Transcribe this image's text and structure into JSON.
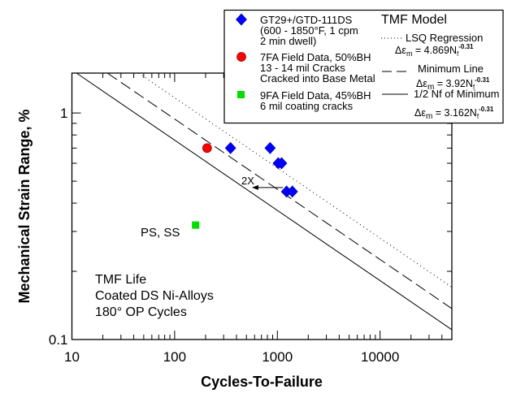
{
  "chart_data": {
    "type": "scatter",
    "title": "",
    "xlabel": "Cycles-To-Failure",
    "ylabel": "Mechanical Strain Range, %",
    "xscale": "log",
    "yscale": "log",
    "xlim": [
      10,
      50000
    ],
    "ylim": [
      0.1,
      1.5
    ],
    "x_tick_labels": [
      "10",
      "100",
      "1000",
      "10000"
    ],
    "x_ticks": [
      10,
      100,
      1000,
      10000
    ],
    "y_tick_labels": [
      "0.1",
      "1"
    ],
    "y_ticks": [
      0.1,
      1
    ],
    "grid": false,
    "legend_placement": "top-right, outside plot area",
    "series": [
      {
        "name": "GT29+/GTD-111DS (600 - 1850°F, 1 cpm 2 min dwell)",
        "marker": "diamond",
        "color": "#0000ff",
        "points": [
          {
            "x": 350,
            "y": 0.7
          },
          {
            "x": 850,
            "y": 0.7
          },
          {
            "x": 1020,
            "y": 0.6
          },
          {
            "x": 1100,
            "y": 0.6
          },
          {
            "x": 1230,
            "y": 0.45
          },
          {
            "x": 1400,
            "y": 0.45
          }
        ]
      },
      {
        "name": "7FA Field Data, 50%BH 13 - 14 mil Cracks Cracked into Base Metal",
        "marker": "circle",
        "color": "#ff0000",
        "points": [
          {
            "x": 207,
            "y": 0.7
          }
        ]
      },
      {
        "name": "9FA Field Data, 45%BH 6 mil coating cracks",
        "marker": "square",
        "color": "#00dd00",
        "points": [
          {
            "x": 160,
            "y": 0.32
          }
        ]
      }
    ],
    "model_lines": [
      {
        "name": "LSQ Regression",
        "style": "dotted",
        "coef": 4.869,
        "exponent": -0.31
      },
      {
        "name": "Minimum Line",
        "style": "dashed",
        "coef": 3.92,
        "exponent": -0.31
      },
      {
        "name": "1/2 Nf of Minimum",
        "style": "solid",
        "coef": 3.162,
        "exponent": -0.31
      }
    ],
    "annotations": [
      {
        "text": "PS, SS",
        "x": 80,
        "y": 0.31
      },
      {
        "text": "2X",
        "x_from": 1130,
        "x_to": 565,
        "y": 0.45,
        "type": "arrow"
      }
    ],
    "text_block": [
      "TMF Life",
      "Coated DS Ni-Alloys",
      "180° OP Cycles"
    ]
  },
  "legend": {
    "entries": [
      {
        "lines": [
          "GT29+/GTD-111DS",
          "(600 - 1850°F, 1 cpm",
          "2 min dwell)"
        ],
        "marker": "diamond",
        "color": "#0000ff"
      },
      {
        "lines": [
          "7FA Field Data, 50%BH",
          "13 - 14 mil Cracks",
          "Cracked into Base Metal"
        ],
        "marker": "circle",
        "color": "#ff0000"
      },
      {
        "lines": [
          "9FA Field Data, 45%BH",
          "6 mil coating cracks"
        ],
        "marker": "square",
        "color": "#00dd00"
      }
    ],
    "model_title": "TMF Model",
    "model_entries": [
      {
        "label": "LSQ Regression",
        "eq_prefix": "Δε",
        "eq_sub": "m",
        "eq_body": " = 4.869N",
        "eq_sub2": "f",
        "eq_sup": "-0.31"
      },
      {
        "label": "Minimum Line",
        "eq_prefix": "Δε",
        "eq_sub": "m",
        "eq_body": " = 3.92N",
        "eq_sub2": "f",
        "eq_sup": "-0.31"
      },
      {
        "label": "1/2 Nf of Minimum",
        "eq_prefix": "Δε",
        "eq_sub": "m",
        "eq_body": " = 3.162N",
        "eq_sub2": "f",
        "eq_sup": "-0.31"
      }
    ]
  }
}
